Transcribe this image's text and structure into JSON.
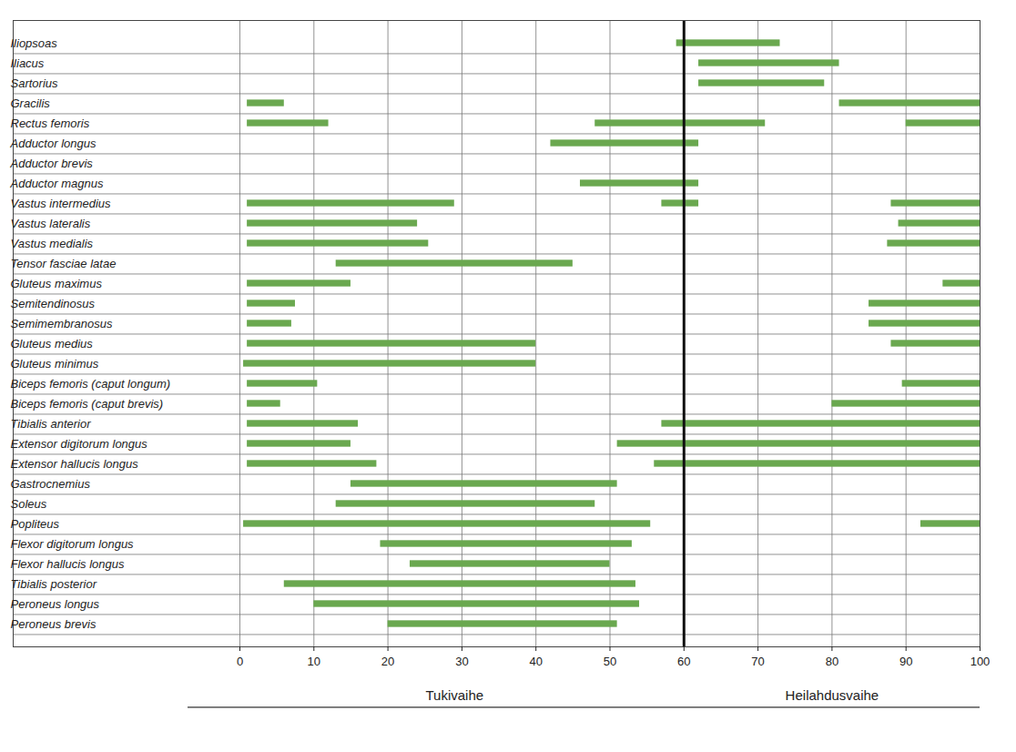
{
  "chart_data": {
    "type": "range_bar",
    "orientation": "horizontal",
    "color": "#6aa84f",
    "grid": true,
    "xlim": [
      0,
      100
    ],
    "xticks": [
      0,
      10,
      20,
      30,
      40,
      50,
      60,
      70,
      80,
      90,
      100
    ],
    "reference_lines": [
      {
        "x": 60
      }
    ],
    "annotations": [
      {
        "text": "Tukivaihe",
        "x": 29
      },
      {
        "text": "Heilahdusvaihe",
        "x": 80
      }
    ],
    "categories": [
      "Iliopsoas",
      "Iliacus",
      "Sartorius",
      "Gracilis",
      "Rectus femoris",
      "Adductor longus",
      "Adductor brevis",
      "Adductor magnus",
      "Vastus intermedius",
      "Vastus lateralis",
      "Vastus medialis",
      "Tensor fasciae latae",
      "Gluteus maximus",
      "Semitendinosus",
      "Semimembranosus",
      "Gluteus medius",
      "Gluteus minimus",
      "Biceps femoris (caput longum)",
      "Biceps femoris (caput brevis)",
      "Tibialis anterior",
      "Extensor digitorum longus",
      "Extensor hallucis longus",
      "Gastrocnemius",
      "Soleus",
      "Popliteus",
      "Flexor digitorum longus",
      "Flexor hallucis longus",
      "Tibialis posterior",
      "Peroneus longus",
      "Peroneus brevis"
    ],
    "values": [
      [
        [
          59,
          73
        ]
      ],
      [
        [
          62,
          81
        ]
      ],
      [
        [
          62,
          79
        ]
      ],
      [
        [
          1,
          6
        ],
        [
          81,
          100
        ]
      ],
      [
        [
          1,
          12
        ],
        [
          48,
          71
        ],
        [
          90,
          100
        ]
      ],
      [
        [
          42,
          62
        ]
      ],
      [],
      [
        [
          46,
          62
        ]
      ],
      [
        [
          1,
          29
        ],
        [
          57,
          62
        ],
        [
          88,
          100
        ]
      ],
      [
        [
          1,
          24
        ],
        [
          89,
          100
        ]
      ],
      [
        [
          1,
          25.5
        ],
        [
          87.5,
          100
        ]
      ],
      [
        [
          13,
          45
        ]
      ],
      [
        [
          1,
          15
        ],
        [
          95,
          100
        ]
      ],
      [
        [
          1,
          7.5
        ],
        [
          85,
          100
        ]
      ],
      [
        [
          1,
          7
        ],
        [
          85,
          100
        ]
      ],
      [
        [
          1,
          40
        ],
        [
          88,
          100
        ]
      ],
      [
        [
          0.5,
          40
        ]
      ],
      [
        [
          1,
          10.5
        ],
        [
          89.5,
          100
        ]
      ],
      [
        [
          1,
          5.5
        ],
        [
          80,
          100
        ]
      ],
      [
        [
          1,
          16
        ],
        [
          57,
          100
        ]
      ],
      [
        [
          1,
          15
        ],
        [
          51,
          100
        ]
      ],
      [
        [
          1,
          18.5
        ],
        [
          56,
          100
        ]
      ],
      [
        [
          15,
          51
        ]
      ],
      [
        [
          13,
          48
        ]
      ],
      [
        [
          0.5,
          55.5
        ],
        [
          92,
          100
        ]
      ],
      [
        [
          19,
          53
        ]
      ],
      [
        [
          23,
          50
        ]
      ],
      [
        [
          6,
          53.5
        ]
      ],
      [
        [
          10,
          54
        ]
      ],
      [
        [
          20,
          51
        ]
      ]
    ]
  }
}
